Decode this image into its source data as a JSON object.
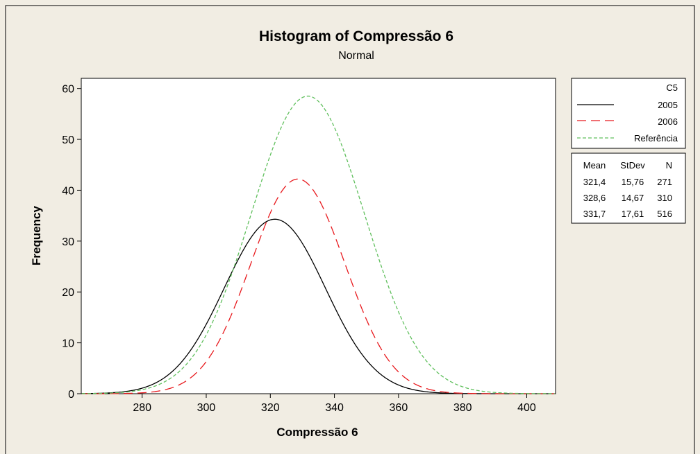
{
  "chart_data": {
    "type": "line",
    "title": "Histogram of Compressão 6",
    "subtitle": "Normal",
    "xlabel": "Compressão 6",
    "ylabel": "Frequency",
    "xlim": [
      261,
      409
    ],
    "ylim": [
      0,
      62
    ],
    "x_ticks": [
      "280",
      "300",
      "320",
      "340",
      "360",
      "380",
      "400"
    ],
    "x_tick_values": [
      280,
      300,
      320,
      340,
      360,
      380,
      400
    ],
    "y_ticks": [
      "0",
      "10",
      "20",
      "30",
      "40",
      "50",
      "60"
    ],
    "y_tick_values": [
      0,
      10,
      20,
      30,
      40,
      50,
      60
    ],
    "grid": false,
    "legend": {
      "position": "right",
      "title": "C5",
      "entries": [
        "2005",
        "2006",
        "Referência"
      ]
    },
    "stats": {
      "headers": [
        "Mean",
        "StDev",
        "N"
      ],
      "rows": [
        [
          "321,4",
          "15,76",
          "271"
        ],
        [
          "328,6",
          "14,67",
          "310"
        ],
        [
          "331,7",
          "17,61",
          "516"
        ]
      ]
    },
    "series": [
      {
        "name": "2005",
        "distribution": "normal",
        "mean": 321.4,
        "stdev": 15.76,
        "n": 271,
        "bin_width": 5,
        "peak": 34.3,
        "color": "#000000",
        "dash": "solid"
      },
      {
        "name": "2006",
        "distribution": "normal",
        "mean": 328.6,
        "stdev": 14.67,
        "n": 310,
        "bin_width": 5,
        "peak": 42.2,
        "color": "#e8191d",
        "dash": "long-dash"
      },
      {
        "name": "Referência",
        "distribution": "normal",
        "mean": 331.7,
        "stdev": 17.61,
        "n": 516,
        "bin_width": 5,
        "peak": 58.5,
        "color": "#5fbf5c",
        "dash": "short-dash"
      }
    ]
  }
}
